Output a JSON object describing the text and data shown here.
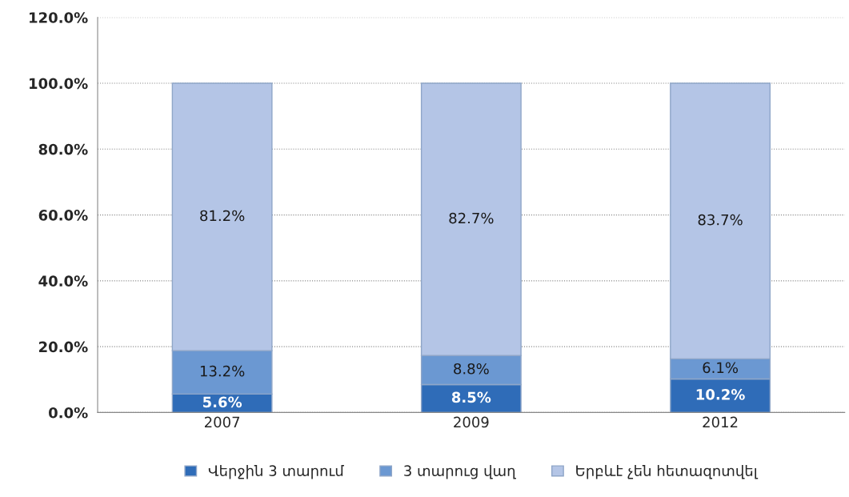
{
  "chart_data": {
    "type": "bar",
    "stacked": true,
    "categories": [
      "2007",
      "2009",
      "2012"
    ],
    "series": [
      {
        "name": "Վերջին 3 տարում",
        "color": "#2f6cb8",
        "values": [
          5.6,
          8.5,
          10.2
        ],
        "value_labels": [
          "5.6%",
          "8.5%",
          "10.2%"
        ]
      },
      {
        "name": "3 տարուց վաղ",
        "color": "#6b98d2",
        "values": [
          13.2,
          8.8,
          6.1
        ],
        "value_labels": [
          "13.2%",
          "8.8%",
          "6.1%"
        ]
      },
      {
        "name": "Երբևէ չեն հետազոտվել",
        "color": "#b4c5e6",
        "values": [
          81.2,
          82.7,
          83.7
        ],
        "value_labels": [
          "81.2%",
          "82.7%",
          "83.7%"
        ]
      }
    ],
    "ylim": [
      0,
      120
    ],
    "yticks": [
      {
        "value": 0,
        "label": "0.0%"
      },
      {
        "value": 20,
        "label": "20.0%"
      },
      {
        "value": 40,
        "label": "40.0%"
      },
      {
        "value": 60,
        "label": "60.0%"
      },
      {
        "value": 80,
        "label": "80.0%"
      },
      {
        "value": 100,
        "label": "100.0%"
      },
      {
        "value": 120,
        "label": "120.0%"
      }
    ],
    "grid": "y",
    "legend": "bottom"
  }
}
